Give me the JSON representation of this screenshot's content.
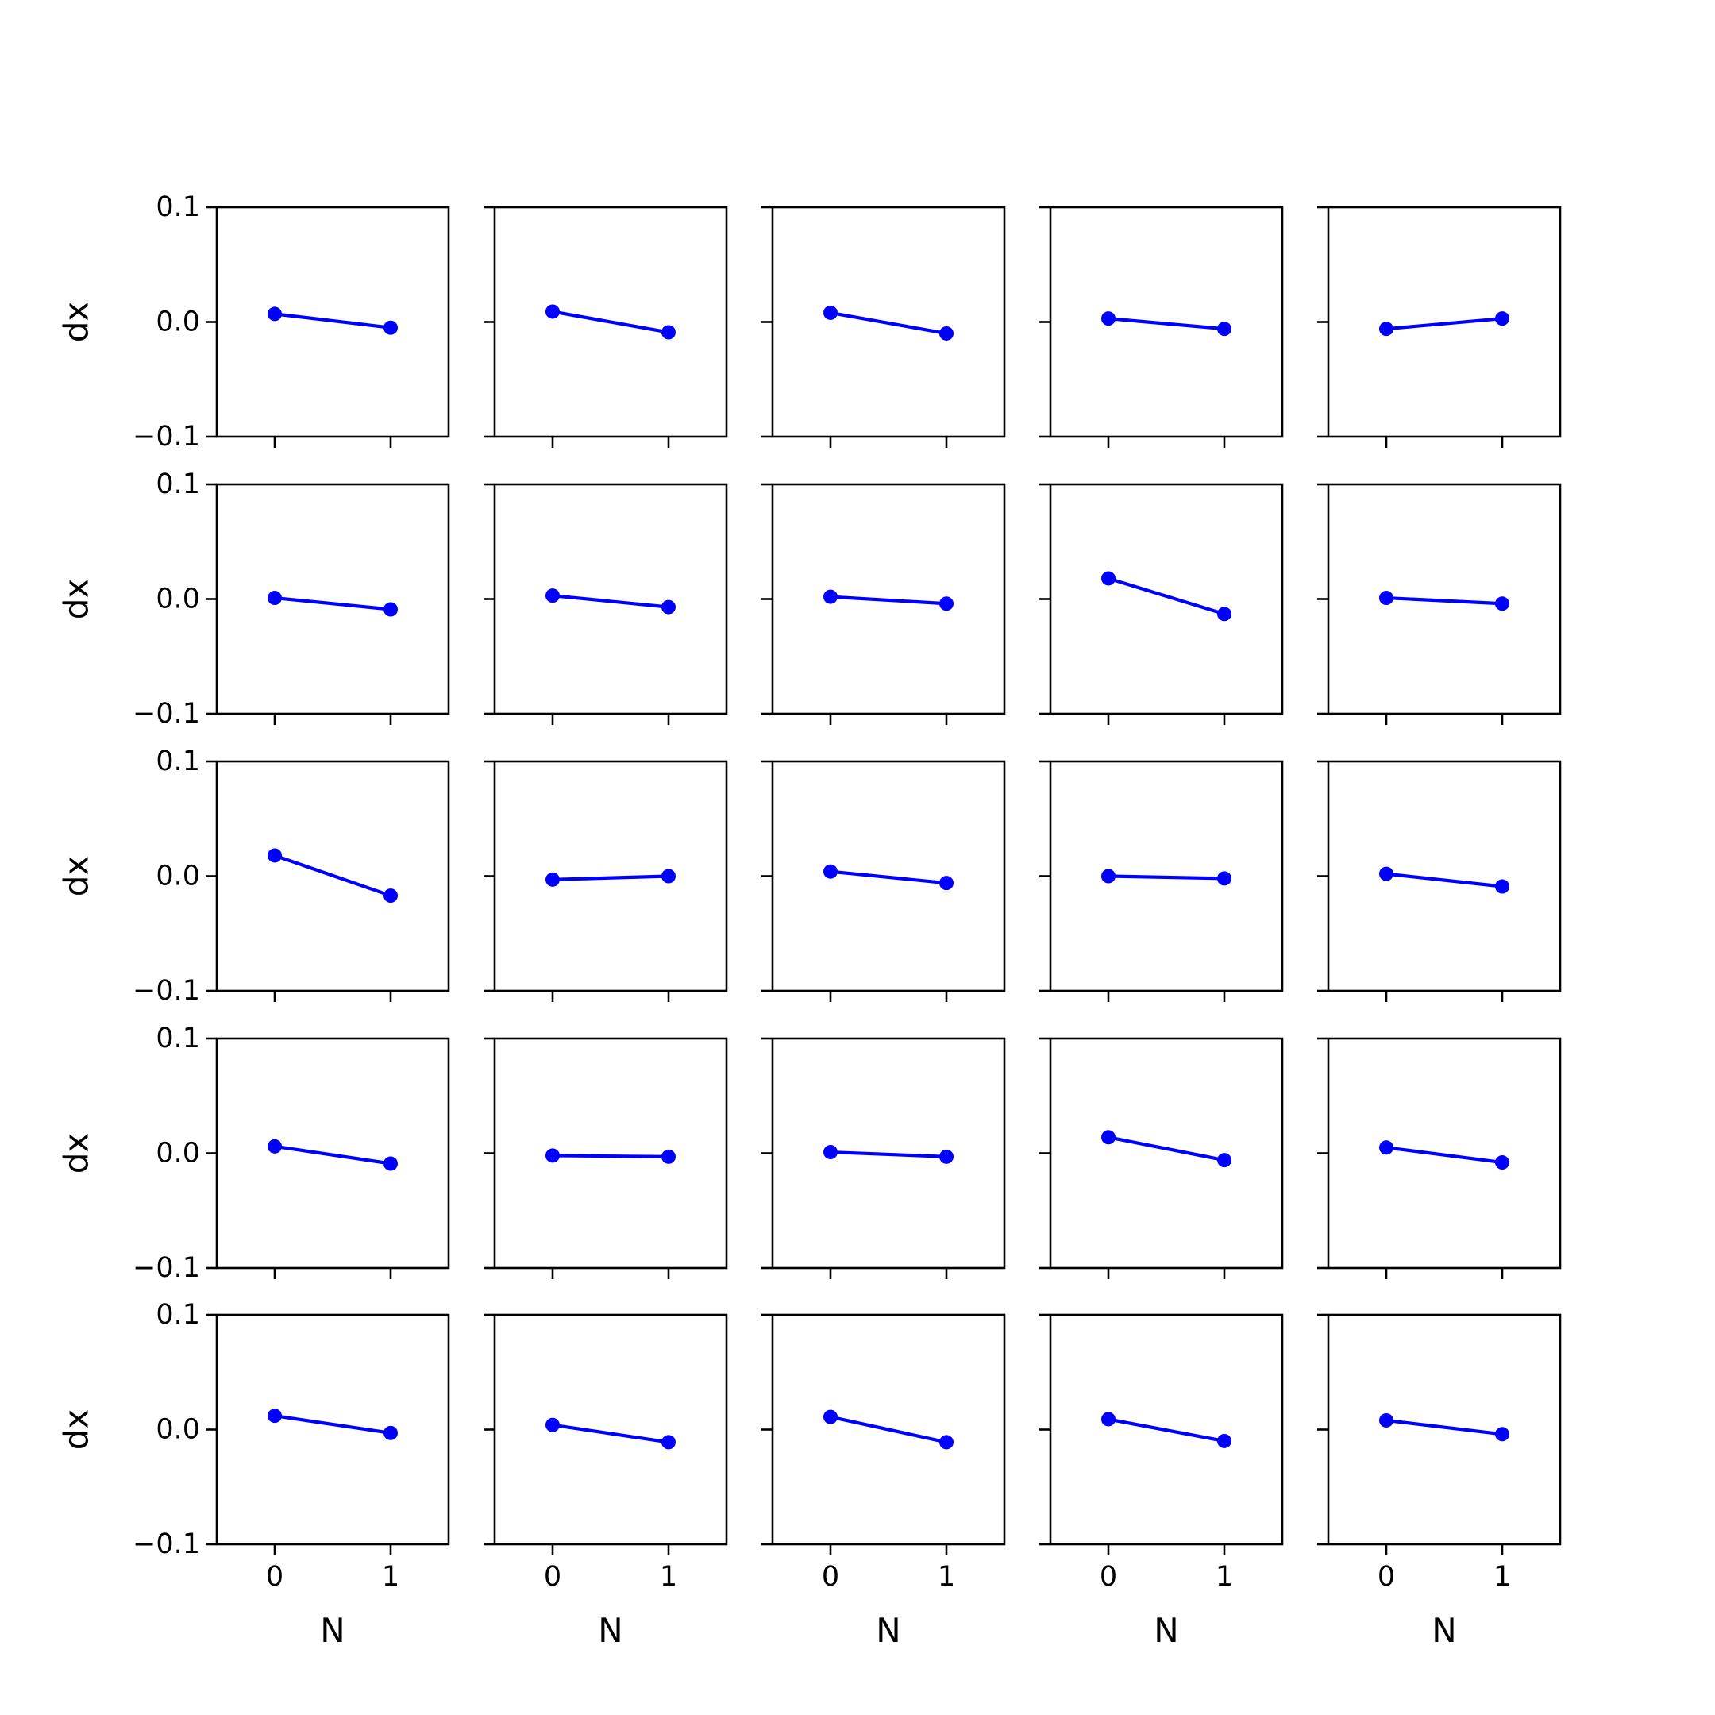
{
  "chart_data": {
    "type": "line",
    "layout": {
      "rows": 5,
      "cols": 5
    },
    "shared_axes": {
      "xlabel": "N",
      "ylabel": "dx",
      "x_ticks": [
        0,
        1
      ],
      "x_tick_labels": [
        "0",
        "1"
      ],
      "xlim": [
        -0.5,
        1.5
      ],
      "y_ticks": [
        -0.1,
        0.0,
        0.1
      ],
      "y_tick_labels": [
        "−0.1",
        "0.0",
        "0.1"
      ],
      "ylim": [
        -0.1,
        0.1
      ],
      "grid": false
    },
    "style": {
      "line_color": "#0000ff",
      "marker": "circle"
    },
    "panels": [
      {
        "row": 1,
        "col": 1,
        "x": [
          0,
          1
        ],
        "y": [
          0.007,
          -0.005
        ]
      },
      {
        "row": 1,
        "col": 2,
        "x": [
          0,
          1
        ],
        "y": [
          0.009,
          -0.009
        ]
      },
      {
        "row": 1,
        "col": 3,
        "x": [
          0,
          1
        ],
        "y": [
          0.008,
          -0.01
        ]
      },
      {
        "row": 1,
        "col": 4,
        "x": [
          0,
          1
        ],
        "y": [
          0.003,
          -0.006
        ]
      },
      {
        "row": 1,
        "col": 5,
        "x": [
          0,
          1
        ],
        "y": [
          -0.006,
          0.003
        ]
      },
      {
        "row": 2,
        "col": 1,
        "x": [
          0,
          1
        ],
        "y": [
          0.001,
          -0.009
        ]
      },
      {
        "row": 2,
        "col": 2,
        "x": [
          0,
          1
        ],
        "y": [
          0.003,
          -0.007
        ]
      },
      {
        "row": 2,
        "col": 3,
        "x": [
          0,
          1
        ],
        "y": [
          0.002,
          -0.004
        ]
      },
      {
        "row": 2,
        "col": 4,
        "x": [
          0,
          1
        ],
        "y": [
          0.018,
          -0.013
        ]
      },
      {
        "row": 2,
        "col": 5,
        "x": [
          0,
          1
        ],
        "y": [
          0.001,
          -0.004
        ]
      },
      {
        "row": 3,
        "col": 1,
        "x": [
          0,
          1
        ],
        "y": [
          0.018,
          -0.017
        ]
      },
      {
        "row": 3,
        "col": 2,
        "x": [
          0,
          1
        ],
        "y": [
          -0.003,
          0.0
        ]
      },
      {
        "row": 3,
        "col": 3,
        "x": [
          0,
          1
        ],
        "y": [
          0.004,
          -0.006
        ]
      },
      {
        "row": 3,
        "col": 4,
        "x": [
          0,
          1
        ],
        "y": [
          0.0,
          -0.002
        ]
      },
      {
        "row": 3,
        "col": 5,
        "x": [
          0,
          1
        ],
        "y": [
          0.002,
          -0.009
        ]
      },
      {
        "row": 4,
        "col": 1,
        "x": [
          0,
          1
        ],
        "y": [
          0.006,
          -0.009
        ]
      },
      {
        "row": 4,
        "col": 2,
        "x": [
          0,
          1
        ],
        "y": [
          -0.002,
          -0.003
        ]
      },
      {
        "row": 4,
        "col": 3,
        "x": [
          0,
          1
        ],
        "y": [
          0.001,
          -0.003
        ]
      },
      {
        "row": 4,
        "col": 4,
        "x": [
          0,
          1
        ],
        "y": [
          0.014,
          -0.006
        ]
      },
      {
        "row": 4,
        "col": 5,
        "x": [
          0,
          1
        ],
        "y": [
          0.005,
          -0.008
        ]
      },
      {
        "row": 5,
        "col": 1,
        "x": [
          0,
          1
        ],
        "y": [
          0.012,
          -0.003
        ]
      },
      {
        "row": 5,
        "col": 2,
        "x": [
          0,
          1
        ],
        "y": [
          0.004,
          -0.011
        ]
      },
      {
        "row": 5,
        "col": 3,
        "x": [
          0,
          1
        ],
        "y": [
          0.011,
          -0.011
        ]
      },
      {
        "row": 5,
        "col": 4,
        "x": [
          0,
          1
        ],
        "y": [
          0.009,
          -0.01
        ]
      },
      {
        "row": 5,
        "col": 5,
        "x": [
          0,
          1
        ],
        "y": [
          0.008,
          -0.004
        ]
      }
    ]
  }
}
